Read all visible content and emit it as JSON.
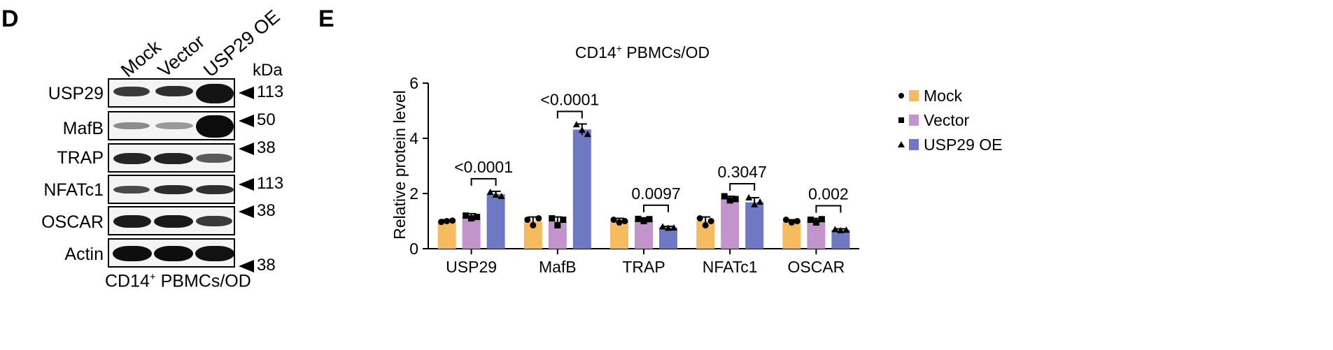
{
  "panel_d": {
    "letter": "D",
    "lanes": [
      "Mock",
      "Vector",
      "USP29 OE"
    ],
    "kda_label": "kDa",
    "caption_main": "CD14",
    "caption_sup": "+",
    "caption_rest": " PBMCs/OD",
    "rows": [
      {
        "label": "USP29",
        "marker": "113"
      },
      {
        "label": "MafB",
        "marker": "50"
      },
      {
        "label": "TRAP",
        "marker": "38"
      },
      {
        "label": "NFATc1",
        "marker": "113"
      },
      {
        "label": "OSCAR",
        "marker": "38"
      },
      {
        "label": "Actin",
        "marker": "38"
      }
    ]
  },
  "panel_e": {
    "letter": "E",
    "colors": {
      "Mock": "#f7bb5f",
      "Vector": "#c394cc",
      "USP29 OE": "#6f78c2",
      "axis": "#000000"
    }
  },
  "chart_data": {
    "type": "bar",
    "title_main": "CD14",
    "title_sup": "+",
    "title_rest": " PBMCs/OD",
    "ylabel": "Relative protein level",
    "xlabel": "",
    "ylim": [
      0,
      6
    ],
    "yticks": [
      "0",
      "2",
      "4",
      "6"
    ],
    "categories": [
      "USP29",
      "MafB",
      "TRAP",
      "NFATc1",
      "OSCAR"
    ],
    "series": [
      {
        "name": "Mock",
        "marker": "•",
        "values": [
          1.0,
          1.0,
          1.0,
          1.0,
          1.0
        ],
        "errors": [
          0.05,
          0.15,
          0.1,
          0.15,
          0.05
        ],
        "points": [
          [
            0.97,
            1.0,
            1.02
          ],
          [
            1.05,
            0.85,
            1.1
          ],
          [
            1.05,
            0.95,
            1.0
          ],
          [
            1.1,
            0.85,
            1.0
          ],
          [
            1.05,
            0.95,
            1.0
          ]
        ]
      },
      {
        "name": "Vector",
        "marker": "▪",
        "values": [
          1.15,
          1.0,
          1.05,
          1.8,
          1.02
        ],
        "errors": [
          0.12,
          0.15,
          0.07,
          0.1,
          0.08
        ],
        "points": [
          [
            1.2,
            1.1,
            1.15
          ],
          [
            1.1,
            0.85,
            1.05
          ],
          [
            1.08,
            1.0,
            1.07
          ],
          [
            1.9,
            1.75,
            1.8
          ],
          [
            1.05,
            0.95,
            1.07
          ]
        ]
      },
      {
        "name": "USP29 OE",
        "marker": "▴",
        "values": [
          1.98,
          4.32,
          0.77,
          1.68,
          0.68
        ],
        "errors": [
          0.1,
          0.2,
          0.04,
          0.17,
          0.04
        ],
        "points": [
          [
            2.05,
            1.95,
            1.9
          ],
          [
            4.5,
            4.3,
            4.15
          ],
          [
            0.8,
            0.75,
            0.76
          ],
          [
            1.85,
            1.6,
            1.7
          ],
          [
            0.7,
            0.66,
            0.68
          ]
        ]
      }
    ],
    "comparisons": [
      {
        "category": "USP29",
        "label": "<0.0001"
      },
      {
        "category": "MafB",
        "label": "<0.0001"
      },
      {
        "category": "TRAP",
        "label": "0.0097"
      },
      {
        "category": "NFATc1",
        "label": "0.3047"
      },
      {
        "category": "OSCAR",
        "label": "0.002"
      }
    ],
    "legend_position": "right"
  }
}
